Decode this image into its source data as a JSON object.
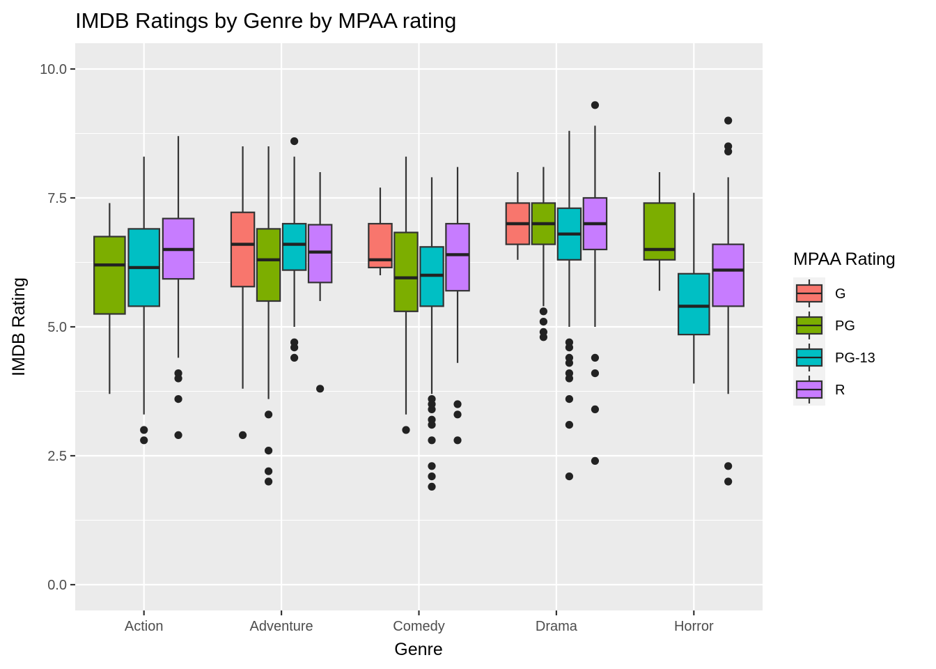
{
  "chart_data": {
    "type": "boxplot",
    "title": "IMDB Ratings by Genre by MPAA rating",
    "xlabel": "Genre",
    "ylabel": "IMDB Rating",
    "categories": [
      "Action",
      "Adventure",
      "Comedy",
      "Drama",
      "Horror"
    ],
    "ylim": [
      -0.5,
      10.5
    ],
    "yticks": [
      0.0,
      2.5,
      5.0,
      7.5,
      10.0
    ],
    "ytick_labels": [
      "0.0",
      "2.5",
      "5.0",
      "7.5",
      "10.0"
    ],
    "grid": true,
    "legend": {
      "title": "MPAA Rating",
      "position": "right",
      "entries": [
        {
          "name": "G",
          "color": "#F8766D"
        },
        {
          "name": "PG",
          "color": "#7CAE00"
        },
        {
          "name": "PG-13",
          "color": "#00BFC4"
        },
        {
          "name": "R",
          "color": "#C77CFF"
        }
      ]
    },
    "series": [
      {
        "name": "G",
        "color": "#F8766D",
        "boxes": [
          null,
          {
            "category": "Adventure",
            "whisker_low": 3.8,
            "q1": 5.78,
            "median": 6.6,
            "q3": 7.22,
            "whisker_high": 8.5,
            "outliers": [
              2.9
            ]
          },
          {
            "category": "Comedy",
            "whisker_low": 6.0,
            "q1": 6.15,
            "median": 6.3,
            "q3": 7.0,
            "whisker_high": 7.7,
            "outliers": []
          },
          {
            "category": "Drama",
            "whisker_low": 6.3,
            "q1": 6.6,
            "median": 7.0,
            "q3": 7.4,
            "whisker_high": 8.0,
            "outliers": []
          },
          null
        ]
      },
      {
        "name": "PG",
        "color": "#7CAE00",
        "boxes": [
          {
            "category": "Action",
            "whisker_low": 3.7,
            "q1": 5.25,
            "median": 6.2,
            "q3": 6.75,
            "whisker_high": 7.4,
            "outliers": []
          },
          {
            "category": "Adventure",
            "whisker_low": 3.6,
            "q1": 5.5,
            "median": 6.3,
            "q3": 6.9,
            "whisker_high": 8.5,
            "outliers": [
              3.3,
              2.6,
              2.2,
              2.0
            ]
          },
          {
            "category": "Comedy",
            "whisker_low": 3.3,
            "q1": 5.3,
            "median": 5.95,
            "q3": 6.83,
            "whisker_high": 8.3,
            "outliers": [
              3.0
            ]
          },
          {
            "category": "Drama",
            "whisker_low": 5.4,
            "q1": 6.6,
            "median": 7.0,
            "q3": 7.4,
            "whisker_high": 8.1,
            "outliers": [
              5.3,
              5.1,
              4.9,
              4.8
            ]
          },
          {
            "category": "Horror",
            "whisker_low": 5.7,
            "q1": 6.3,
            "median": 6.5,
            "q3": 7.4,
            "whisker_high": 8.0,
            "outliers": []
          }
        ]
      },
      {
        "name": "PG-13",
        "color": "#00BFC4",
        "boxes": [
          {
            "category": "Action",
            "whisker_low": 3.3,
            "q1": 5.4,
            "median": 6.15,
            "q3": 6.9,
            "whisker_high": 8.3,
            "outliers": [
              3.0,
              2.8
            ]
          },
          {
            "category": "Adventure",
            "whisker_low": 5.0,
            "q1": 6.1,
            "median": 6.6,
            "q3": 7.0,
            "whisker_high": 8.3,
            "outliers": [
              8.6,
              4.7,
              4.6,
              4.4
            ]
          },
          {
            "category": "Comedy",
            "whisker_low": 3.7,
            "q1": 5.4,
            "median": 6.0,
            "q3": 6.55,
            "whisker_high": 7.9,
            "outliers": [
              3.6,
              3.5,
              3.4,
              3.2,
              3.1,
              2.8,
              2.3,
              2.1,
              1.9
            ]
          },
          {
            "category": "Drama",
            "whisker_low": 5.0,
            "q1": 6.3,
            "median": 6.8,
            "q3": 7.3,
            "whisker_high": 8.8,
            "outliers": [
              4.7,
              4.6,
              4.4,
              4.3,
              4.1,
              4.0,
              3.6,
              3.1,
              2.1
            ]
          },
          {
            "category": "Horror",
            "whisker_low": 3.9,
            "q1": 4.85,
            "median": 5.4,
            "q3": 6.03,
            "whisker_high": 7.6,
            "outliers": []
          }
        ]
      },
      {
        "name": "R",
        "color": "#C77CFF",
        "boxes": [
          {
            "category": "Action",
            "whisker_low": 4.4,
            "q1": 5.93,
            "median": 6.5,
            "q3": 7.1,
            "whisker_high": 8.7,
            "outliers": [
              4.1,
              4.0,
              3.6,
              2.9
            ]
          },
          {
            "category": "Adventure",
            "whisker_low": 5.5,
            "q1": 5.86,
            "median": 6.45,
            "q3": 6.98,
            "whisker_high": 8.0,
            "outliers": [
              3.8
            ]
          },
          {
            "category": "Comedy",
            "whisker_low": 4.3,
            "q1": 5.7,
            "median": 6.4,
            "q3": 7.0,
            "whisker_high": 8.1,
            "outliers": [
              3.5,
              3.3,
              2.8
            ]
          },
          {
            "category": "Drama",
            "whisker_low": 5.0,
            "q1": 6.5,
            "median": 7.0,
            "q3": 7.5,
            "whisker_high": 8.9,
            "outliers": [
              9.3,
              4.4,
              4.1,
              3.4,
              2.4
            ]
          },
          {
            "category": "Horror",
            "whisker_low": 3.7,
            "q1": 5.4,
            "median": 6.1,
            "q3": 6.6,
            "whisker_high": 7.9,
            "outliers": [
              9.0,
              8.5,
              8.4,
              2.3,
              2.0
            ]
          }
        ]
      }
    ]
  }
}
